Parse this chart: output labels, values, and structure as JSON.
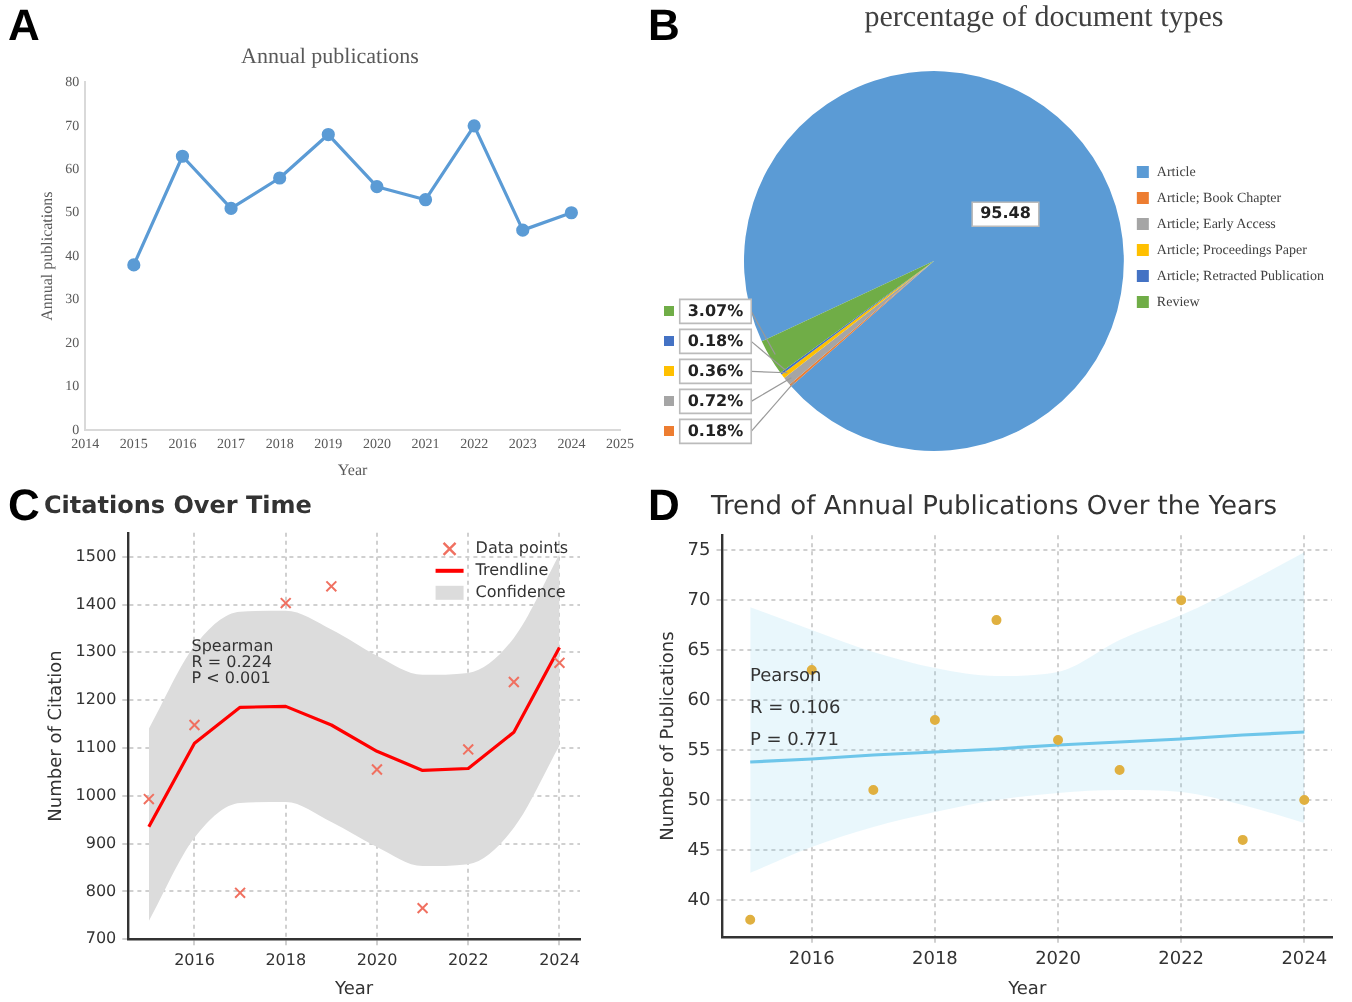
{
  "chart_data": [
    {
      "type": "line",
      "title": "Annual publications",
      "xlabel": "Year",
      "ylabel": "Annual publications",
      "annotations": [
        "A"
      ],
      "x": [
        2015,
        2016,
        2017,
        2018,
        2019,
        2020,
        2021,
        2022,
        2023,
        2024
      ],
      "values": [
        38,
        63,
        51,
        58,
        68,
        56,
        53,
        70,
        46,
        50
      ],
      "color": "#5b9bd5",
      "marker": "circle",
      "xlim": [
        2014,
        2025
      ],
      "xticks": [
        2014,
        2015,
        2016,
        2017,
        2018,
        2019,
        2020,
        2021,
        2022,
        2023,
        2024,
        2025
      ],
      "ylim": [
        0,
        80
      ],
      "yticks": [
        0,
        10,
        20,
        30,
        40,
        50,
        60,
        70,
        80
      ],
      "grid": false,
      "legend": false
    },
    {
      "type": "pie",
      "title": "percentage of document types",
      "annotations": [
        "B"
      ],
      "categories": [
        "Article",
        "Article; Book Chapter",
        "Article; Early Access",
        "Article; Proceedings Paper",
        "Article; Retracted Publication",
        "Review"
      ],
      "values": [
        95.48,
        0.18,
        0.72,
        0.36,
        0.18,
        3.07
      ],
      "value_labels": [
        "95.48",
        "0.18%",
        "0.72%",
        "0.36%",
        "0.18%",
        "3.07%"
      ],
      "colors": [
        "#5b9bd5",
        "#ed7d31",
        "#a5a5a5",
        "#ffc000",
        "#4472c4",
        "#70ad47"
      ],
      "legend": "right"
    },
    {
      "type": "scatter",
      "title": "Citations Over Time",
      "xlabel": "Year",
      "ylabel": "Number of Citation",
      "annotations": [
        "C",
        "Spearman",
        "R = 0.224",
        "P < 0.001"
      ],
      "x": [
        2015,
        2016,
        2017,
        2018,
        2019,
        2020,
        2021,
        2022,
        2023,
        2024
      ],
      "series": [
        {
          "name": "Data points",
          "type": "scatter",
          "marker": "cross",
          "color": "#f07060",
          "values": [
            993,
            1148,
            797,
            1403,
            1438,
            1055,
            765,
            1097,
            1238,
            1278
          ]
        },
        {
          "name": "Trendline",
          "type": "line",
          "color": "#ff0000",
          "values": [
            935,
            1110,
            1185,
            1187,
            1148,
            1093,
            1053,
            1057,
            1133,
            1310
          ]
        },
        {
          "name": "Confidence",
          "type": "area",
          "color": "#dcdcdc",
          "values": [
            null,
            null,
            null,
            null,
            null,
            null,
            null,
            null,
            null,
            null
          ],
          "lower": [
            738,
            912,
            985,
            987,
            945,
            893,
            853,
            857,
            933,
            1105
          ],
          "upper": [
            1140,
            1313,
            1385,
            1387,
            1348,
            1293,
            1253,
            1257,
            1330,
            1505
          ]
        }
      ],
      "xlim": [
        2014.55,
        2024.45
      ],
      "xticks": [
        2016,
        2018,
        2020,
        2022,
        2024
      ],
      "ylim": [
        700,
        1550
      ],
      "yticks": [
        700,
        800,
        900,
        1000,
        1100,
        1200,
        1300,
        1400,
        1500
      ],
      "grid": true,
      "legend": "top right"
    },
    {
      "type": "scatter",
      "title": "Trend of Annual Publications Over the Years",
      "xlabel": "Year",
      "ylabel": "Number of Publications",
      "annotations": [
        "D",
        "Pearson",
        "R = 0.106",
        "P = 0.771"
      ],
      "x": [
        2015,
        2016,
        2017,
        2018,
        2019,
        2020,
        2021,
        2022,
        2023,
        2024
      ],
      "series": [
        {
          "type": "scatter",
          "marker": "circle",
          "color": "#e0b040",
          "values": [
            38,
            63,
            51,
            58,
            68,
            56,
            53,
            70,
            46,
            50
          ]
        },
        {
          "type": "line",
          "color": "#6ec6ea",
          "values": [
            53.8,
            54.1,
            54.5,
            54.8,
            55.1,
            55.5,
            55.8,
            56.1,
            56.5,
            56.8
          ],
          "lower": [
            42.7,
            45.3,
            47.3,
            48.8,
            50.0,
            50.7,
            51.0,
            50.8,
            49.5,
            47.7
          ],
          "upper": [
            69.3,
            67.0,
            64.8,
            63.2,
            62.4,
            62.8,
            66.0,
            68.5,
            71.5,
            74.8
          ]
        }
      ],
      "xlim": [
        2014.55,
        2024.45
      ],
      "xticks": [
        2016,
        2018,
        2020,
        2022,
        2024
      ],
      "ylim": [
        36.3,
        76.5
      ],
      "yticks": [
        40,
        45,
        50,
        55,
        60,
        65,
        70,
        75
      ],
      "grid": true,
      "legend": false
    }
  ]
}
